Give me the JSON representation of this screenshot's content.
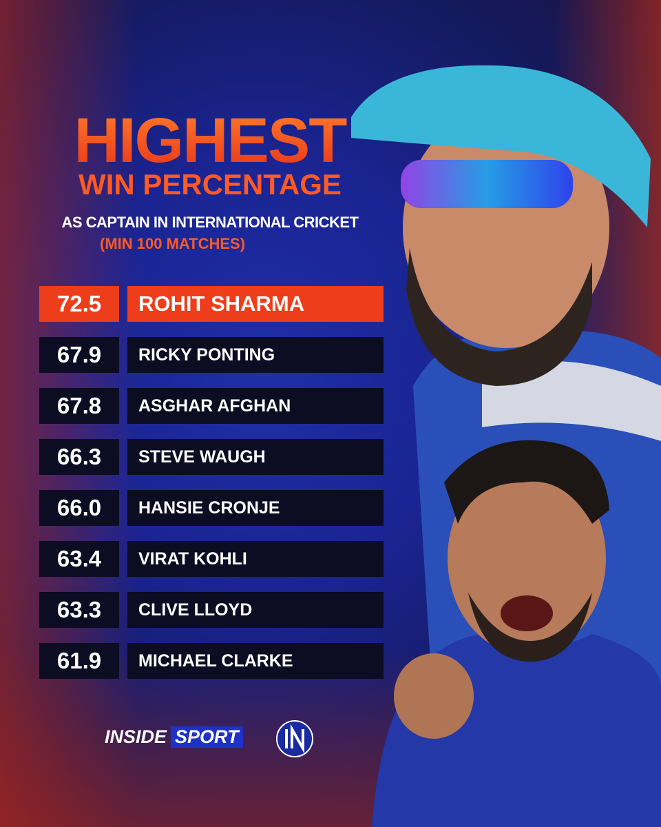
{
  "header": {
    "title": "HIGHEST",
    "title_line2": "WIN PERCENTAGE",
    "subtitle": "AS CAPTAIN IN INTERNATIONAL CRICKET",
    "note": "(MIN 100 MATCHES)"
  },
  "table": {
    "rows": [
      [
        "72.5",
        "ROHIT SHARMA"
      ],
      [
        "67.9",
        "RICKY PONTING"
      ],
      [
        "67.8",
        "ASGHAR AFGHAN"
      ],
      [
        "66.3",
        "STEVE WAUGH"
      ],
      [
        "66.0",
        "HANSIE CRONJE"
      ],
      [
        "63.4",
        "VIRAT KOHLI"
      ],
      [
        "63.3",
        "CLIVE LLOYD"
      ],
      [
        "61.9",
        "MICHAEL CLARKE"
      ]
    ]
  },
  "footer": {
    "brand_1": "INSIDE",
    "brand_2": "SPORT"
  }
}
